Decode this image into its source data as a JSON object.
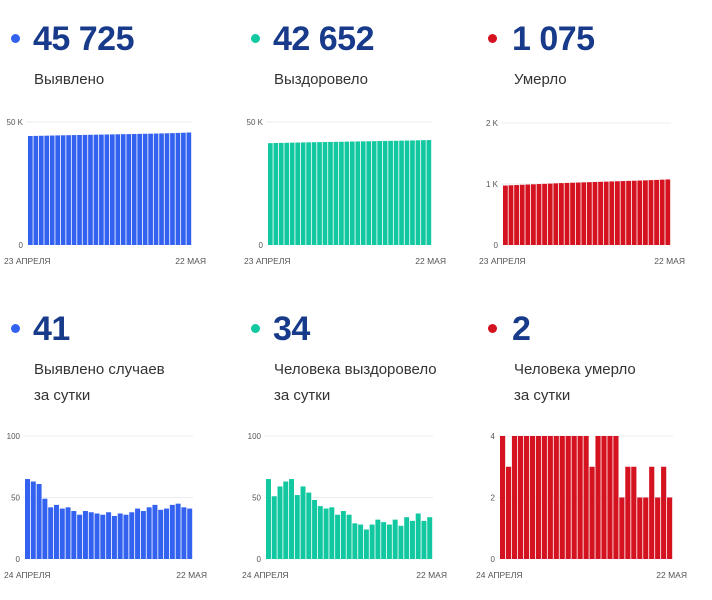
{
  "colors": {
    "blue": "#3361f0",
    "green": "#12c8a0",
    "red": "#d5121f",
    "number": "#173b8a"
  },
  "cards": [
    {
      "id": "confirmed",
      "number": "45 725",
      "label_lines": [
        "Выявлено"
      ],
      "color_key": "blue"
    },
    {
      "id": "recovered",
      "number": "42 652",
      "label_lines": [
        "Выздоровело"
      ],
      "color_key": "green"
    },
    {
      "id": "deaths",
      "number": "1 075",
      "label_lines": [
        "Умерло"
      ],
      "color_key": "red"
    },
    {
      "id": "confirmed-daily",
      "number": "41",
      "label_lines": [
        "Выявлено случаев",
        "за сутки"
      ],
      "color_key": "blue"
    },
    {
      "id": "recovered-daily",
      "number": "34",
      "label_lines": [
        "Человека выздоровело",
        "за сутки"
      ],
      "color_key": "green"
    },
    {
      "id": "deaths-daily",
      "number": "2",
      "label_lines": [
        "Человека умерло",
        "за сутки"
      ],
      "color_key": "red"
    }
  ],
  "chart_data": [
    {
      "type": "bar",
      "title": "Выявлено",
      "x_start_label": "23 АПРЕЛЯ",
      "x_end_label": "22 МАЯ",
      "ylim": [
        0,
        50000
      ],
      "y_ticks": [
        {
          "value": 0,
          "label": "0"
        },
        {
          "value": 50000,
          "label": "50 K"
        }
      ],
      "values": [
        44300,
        44350,
        44400,
        44450,
        44500,
        44550,
        44590,
        44640,
        44680,
        44720,
        44760,
        44800,
        44840,
        44880,
        44920,
        44960,
        45000,
        45040,
        45080,
        45120,
        45160,
        45210,
        45260,
        45310,
        45360,
        45420,
        45480,
        45560,
        45640,
        45725
      ]
    },
    {
      "type": "bar",
      "title": "Выздоровело",
      "x_start_label": "23 АПРЕЛЯ",
      "x_end_label": "22 МАЯ",
      "ylim": [
        0,
        50000
      ],
      "y_ticks": [
        {
          "value": 0,
          "label": "0"
        },
        {
          "value": 50000,
          "label": "50 K"
        }
      ],
      "values": [
        41400,
        41450,
        41500,
        41550,
        41600,
        41650,
        41700,
        41740,
        41780,
        41820,
        41860,
        41900,
        41940,
        41980,
        42020,
        42060,
        42100,
        42140,
        42180,
        42220,
        42260,
        42300,
        42340,
        42380,
        42420,
        42460,
        42510,
        42560,
        42610,
        42652
      ]
    },
    {
      "type": "bar",
      "title": "Умерло",
      "x_start_label": "23 АПРЕЛЯ",
      "x_end_label": "22 МАЯ",
      "ylim": [
        0,
        2000
      ],
      "y_ticks": [
        {
          "value": 0,
          "label": "0"
        },
        {
          "value": 1000,
          "label": "1 K"
        },
        {
          "value": 2000,
          "label": "2 K"
        }
      ],
      "values": [
        975,
        979,
        983,
        987,
        991,
        995,
        999,
        1003,
        1007,
        1011,
        1015,
        1018,
        1021,
        1024,
        1027,
        1030,
        1033,
        1036,
        1039,
        1042,
        1045,
        1048,
        1051,
        1054,
        1057,
        1060,
        1064,
        1067,
        1071,
        1075
      ]
    },
    {
      "type": "bar",
      "title": "Выявлено случаев за сутки",
      "x_start_label": "24 АПРЕЛЯ",
      "x_end_label": "22 МАЯ",
      "ylim": [
        0,
        100
      ],
      "y_ticks": [
        {
          "value": 0,
          "label": "0"
        },
        {
          "value": 50,
          "label": "50"
        },
        {
          "value": 100,
          "label": "100"
        }
      ],
      "values": [
        65,
        63,
        61,
        49,
        42,
        44,
        41,
        42,
        39,
        36,
        39,
        38,
        37,
        36,
        38,
        35,
        37,
        36,
        38,
        41,
        39,
        42,
        44,
        40,
        41,
        44,
        45,
        42,
        41
      ]
    },
    {
      "type": "bar",
      "title": "Человека выздоровело за сутки",
      "x_start_label": "24 АПРЕЛЯ",
      "x_end_label": "22 МАЯ",
      "ylim": [
        0,
        100
      ],
      "y_ticks": [
        {
          "value": 0,
          "label": "0"
        },
        {
          "value": 50,
          "label": "50"
        },
        {
          "value": 100,
          "label": "100"
        }
      ],
      "values": [
        65,
        51,
        59,
        63,
        65,
        52,
        59,
        54,
        48,
        43,
        41,
        42,
        36,
        39,
        36,
        29,
        28,
        24,
        28,
        32,
        30,
        28,
        32,
        27,
        34,
        31,
        37,
        31,
        34
      ]
    },
    {
      "type": "bar",
      "title": "Человека умерло за сутки",
      "x_start_label": "24 АПРЕЛЯ",
      "x_end_label": "22 МАЯ",
      "ylim": [
        0,
        4
      ],
      "y_ticks": [
        {
          "value": 0,
          "label": "0"
        },
        {
          "value": 2,
          "label": "2"
        },
        {
          "value": 4,
          "label": "4"
        }
      ],
      "values": [
        4,
        3,
        4,
        4,
        4,
        4,
        4,
        4,
        4,
        4,
        4,
        4,
        4,
        4,
        4,
        3,
        4,
        4,
        4,
        4,
        2,
        3,
        3,
        2,
        2,
        3,
        2,
        3,
        2
      ]
    }
  ]
}
